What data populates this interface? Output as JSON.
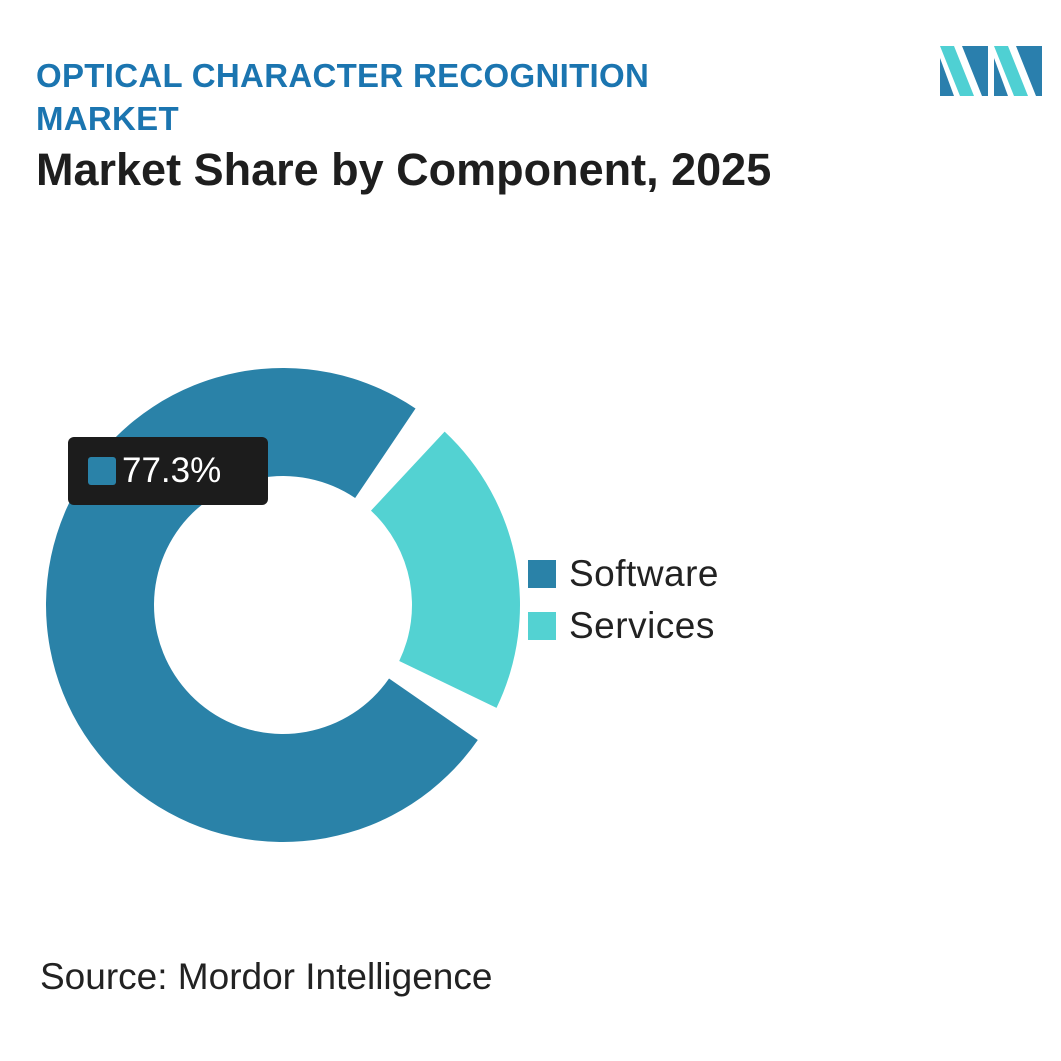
{
  "header": {
    "supertitle": "OPTICAL CHARACTER RECOGNITION MARKET",
    "title": "Market Share by Component, 2025"
  },
  "logo": {
    "icon": "mordor-intelligence-logo",
    "colors": [
      "#2a7fad",
      "#4fd0d3"
    ]
  },
  "chart_data": {
    "type": "pie",
    "variant": "donut",
    "categories": [
      "Software",
      "Services"
    ],
    "values": [
      77.3,
      22.7
    ],
    "unit": "%",
    "colors": [
      "#2a82a8",
      "#53d2d2"
    ],
    "legend_position": "right",
    "tooltip": {
      "label": "77.3%",
      "series": "Software"
    }
  },
  "legend": [
    {
      "label": "Software",
      "color": "#2a82a8"
    },
    {
      "label": "Services",
      "color": "#53d2d2"
    }
  ],
  "footer": {
    "source": "Source: Mordor Intelligence"
  }
}
